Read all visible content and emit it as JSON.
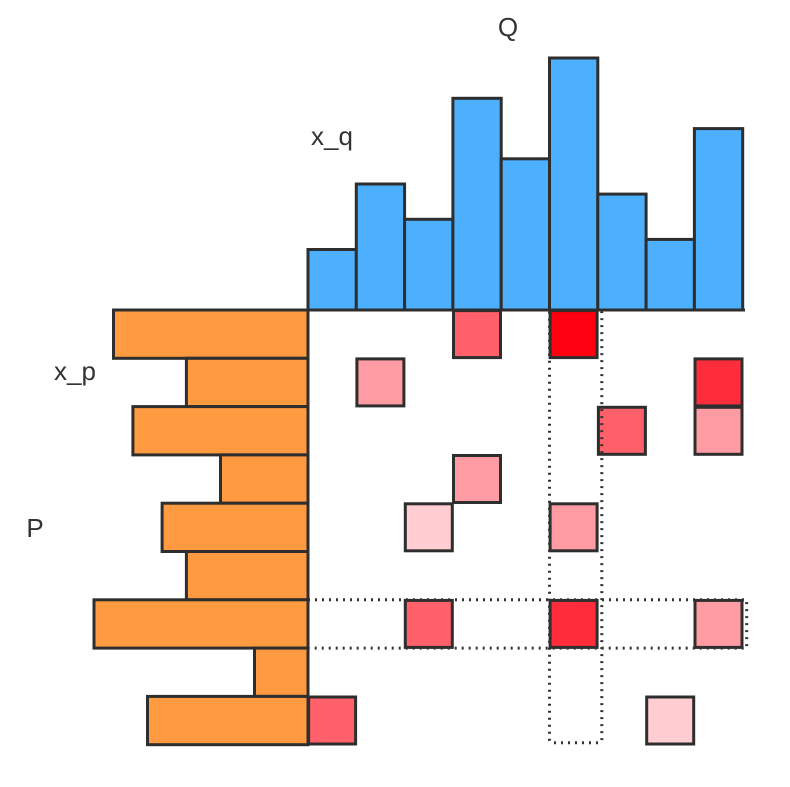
{
  "labels": {
    "q_title": "Q",
    "q_axis": "x_q",
    "p_title": "P",
    "p_axis": "x_p"
  },
  "colors": {
    "q_bar": "#4db0ff",
    "p_bar": "#ff9a40",
    "outline": "#2e2e2e",
    "cell_scale": [
      "#ffcdd2",
      "#ff9ca3",
      "#ff6069",
      "#ff2d3b",
      "#ff0010"
    ]
  },
  "q_distribution": [
    1.2,
    2.5,
    1.8,
    4.2,
    3.0,
    5.0,
    2.3,
    1.4,
    3.6
  ],
  "p_distribution": [
    4.0,
    2.5,
    3.6,
    1.8,
    3.0,
    2.5,
    4.4,
    1.1,
    3.3
  ],
  "joint_cells": [
    {
      "row": 0,
      "col": 3,
      "level": 2
    },
    {
      "row": 0,
      "col": 5,
      "level": 4
    },
    {
      "row": 1,
      "col": 1,
      "level": 1
    },
    {
      "row": 1,
      "col": 8,
      "level": 3
    },
    {
      "row": 2,
      "col": 6,
      "level": 2
    },
    {
      "row": 2,
      "col": 8,
      "level": 1
    },
    {
      "row": 3,
      "col": 3,
      "level": 1
    },
    {
      "row": 4,
      "col": 2,
      "level": 0
    },
    {
      "row": 4,
      "col": 5,
      "level": 1
    },
    {
      "row": 6,
      "col": 2,
      "level": 2
    },
    {
      "row": 6,
      "col": 5,
      "level": 3
    },
    {
      "row": 6,
      "col": 8,
      "level": 1
    },
    {
      "row": 8,
      "col": 0,
      "level": 2
    },
    {
      "row": 8,
      "col": 7,
      "level": 0
    }
  ],
  "highlight": {
    "row": 6,
    "col": 5
  }
}
